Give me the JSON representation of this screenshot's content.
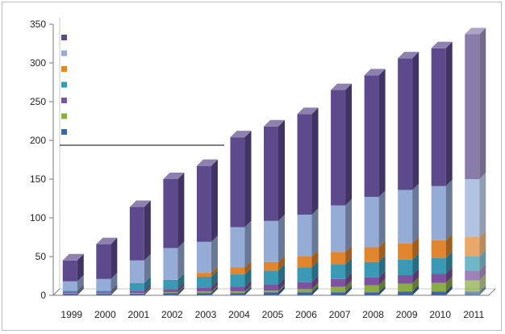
{
  "chart_data": {
    "type": "bar",
    "stacked": true,
    "three_d": true,
    "title": "",
    "xlabel": "",
    "ylabel": "",
    "ylim": [
      0,
      350
    ],
    "ytick_labels": [
      "0",
      "50",
      "100",
      "150",
      "200",
      "250",
      "300",
      "350"
    ],
    "grid": false,
    "legend_position": "top-left",
    "categories": [
      "1999",
      "2000",
      "2001",
      "2002",
      "2003",
      "2004",
      "2005",
      "2006",
      "2007",
      "2008",
      "2009",
      "2010",
      "2011"
    ],
    "highlight_last": true,
    "series": [
      {
        "name": "",
        "color": "#3f66a3",
        "values": [
          2,
          2,
          2,
          3,
          3,
          3,
          4,
          4,
          4,
          4,
          5,
          5,
          5
        ]
      },
      {
        "name": "",
        "color": "#8cad46",
        "values": [
          1,
          1,
          1,
          1,
          2,
          2,
          2,
          4,
          7,
          9,
          10,
          11,
          14
        ]
      },
      {
        "name": "",
        "color": "#7d52a0",
        "values": [
          2,
          2,
          3,
          4,
          5,
          6,
          8,
          9,
          10,
          10,
          11,
          12,
          13
        ]
      },
      {
        "name": "",
        "color": "#3a9ab5",
        "values": [
          1,
          1,
          10,
          12,
          14,
          16,
          18,
          19,
          19,
          20,
          20,
          20,
          18
        ]
      },
      {
        "name": "",
        "color": "#e1862f",
        "values": [
          0,
          0,
          0,
          0,
          5,
          9,
          11,
          14,
          16,
          19,
          21,
          23,
          25
        ]
      },
      {
        "name": "",
        "color": "#95acd6",
        "values": [
          12,
          15,
          29,
          41,
          40,
          52,
          53,
          54,
          60,
          65,
          69,
          70,
          75
        ]
      },
      {
        "name": "",
        "color": "#5d4a8c",
        "values": [
          27,
          45,
          69,
          89,
          98,
          116,
          122,
          130,
          149,
          157,
          170,
          178,
          187
        ]
      }
    ]
  }
}
